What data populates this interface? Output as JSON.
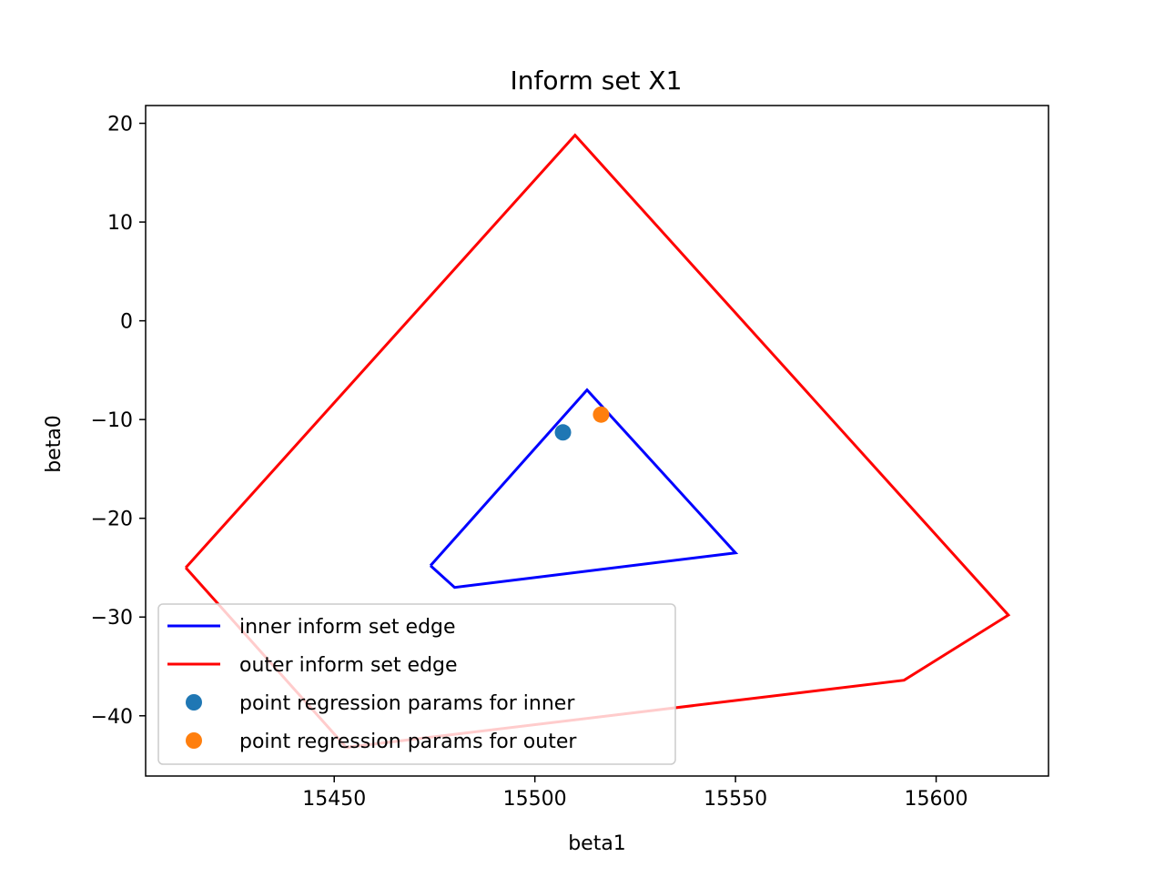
{
  "chart_data": {
    "type": "line",
    "title": "Inform set X1",
    "xlabel": "beta1",
    "ylabel": "beta0",
    "xlim": [
      15403,
      15628
    ],
    "ylim": [
      -46.1,
      21.8
    ],
    "x_ticks": [
      15450,
      15500,
      15550,
      15600
    ],
    "x_tick_labels": [
      "15450",
      "15500",
      "15550",
      "15600"
    ],
    "y_ticks": [
      20,
      10,
      0,
      -10,
      -20,
      -30,
      -40
    ],
    "y_tick_labels": [
      "20",
      "10",
      "0",
      "−10",
      "−20",
      "−30",
      "−40"
    ],
    "grid": false,
    "legend_position": "lower-left",
    "series": [
      {
        "name": "inner inform set edge",
        "kind": "line",
        "color": "#0000ff",
        "points": [
          [
            15474,
            -24.8
          ],
          [
            15513,
            -7.0
          ],
          [
            15550,
            -23.5
          ],
          [
            15480,
            -27.0
          ],
          [
            15474,
            -24.8
          ]
        ]
      },
      {
        "name": "outer inform set edge",
        "kind": "line",
        "color": "#ff0000",
        "points": [
          [
            15413,
            -25.0
          ],
          [
            15510,
            18.8
          ],
          [
            15618,
            -29.8
          ],
          [
            15592,
            -36.4
          ],
          [
            15453,
            -43.2
          ],
          [
            15413,
            -25.0
          ]
        ]
      },
      {
        "name": "point regression params for inner",
        "kind": "point",
        "color": "#1f77b4",
        "points": [
          [
            15507,
            -11.3
          ]
        ]
      },
      {
        "name": "point regression params for outer",
        "kind": "point",
        "color": "#ff7f0e",
        "points": [
          [
            15516.5,
            -9.5
          ]
        ]
      }
    ]
  }
}
